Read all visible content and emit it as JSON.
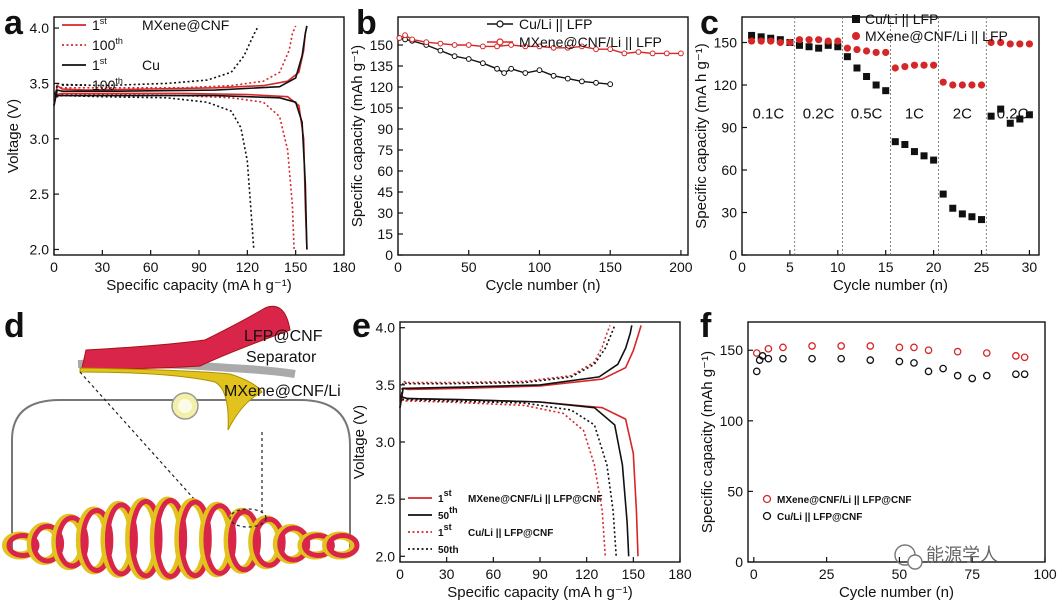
{
  "colors": {
    "red": "#d62728",
    "black": "#111111",
    "gold": "#e7c623",
    "watermark": "#6b6b6b"
  },
  "panel_letters": [
    "a",
    "b",
    "c",
    "d",
    "e",
    "f"
  ],
  "watermark": {
    "icon": "wechat-icon",
    "text": "能源学人"
  },
  "illustration": {
    "labels": [
      "LFP@CNF",
      "Separator",
      "MXene@CNF/Li"
    ]
  },
  "chart_data": [
    {
      "id": "a",
      "type": "line",
      "xlabel": "Specific capacity (mA h g⁻¹)",
      "ylabel": "Voltage (V)",
      "xlim": [
        0,
        180
      ],
      "ylim": [
        1.95,
        4.1
      ],
      "xticks": [
        0,
        30,
        60,
        90,
        120,
        150,
        180
      ],
      "yticks": [
        2.0,
        2.5,
        3.0,
        3.5,
        4.0
      ],
      "ytick_labels": [
        "2.0",
        "2.5",
        "3.0",
        "3.5",
        "4.0"
      ],
      "legend": {
        "position": "top-left",
        "entries": [
          {
            "cycle": "1",
            "sup": "st",
            "style": "solid",
            "color": "red",
            "group_label": "MXene@CNF"
          },
          {
            "cycle": "100",
            "sup": "th",
            "style": "dotted",
            "color": "red",
            "group_label": ""
          },
          {
            "cycle": "1",
            "sup": "st",
            "style": "solid",
            "color": "black",
            "group_label": "Cu"
          },
          {
            "cycle": "100",
            "sup": "th",
            "style": "dotted",
            "color": "black",
            "group_label": ""
          }
        ]
      },
      "series": [
        {
          "color": "red",
          "dash": "solid",
          "x": [
            0,
            2,
            5,
            20,
            60,
            100,
            130,
            145,
            152,
            155,
            156,
            157
          ],
          "y": [
            3.3,
            3.48,
            3.45,
            3.44,
            3.45,
            3.46,
            3.48,
            3.52,
            3.6,
            3.8,
            3.95,
            4.02
          ]
        },
        {
          "color": "red",
          "dash": "solid",
          "x": [
            0,
            2,
            5,
            30,
            80,
            120,
            145,
            152,
            155,
            156,
            157
          ],
          "y": [
            3.42,
            3.4,
            3.41,
            3.41,
            3.41,
            3.4,
            3.38,
            3.3,
            3.0,
            2.4,
            2.0
          ]
        },
        {
          "color": "red",
          "dash": "dotted",
          "x": [
            0,
            2,
            5,
            30,
            80,
            110,
            130,
            140,
            146,
            148,
            150
          ],
          "y": [
            3.3,
            3.47,
            3.46,
            3.46,
            3.46,
            3.48,
            3.52,
            3.6,
            3.8,
            3.95,
            4.02
          ]
        },
        {
          "color": "red",
          "dash": "dotted",
          "x": [
            0,
            2,
            5,
            30,
            80,
            110,
            130,
            140,
            145,
            148,
            149
          ],
          "y": [
            3.42,
            3.39,
            3.4,
            3.4,
            3.39,
            3.37,
            3.33,
            3.2,
            2.9,
            2.4,
            2.0
          ]
        },
        {
          "color": "black",
          "dash": "solid",
          "x": [
            0,
            2,
            5,
            40,
            100,
            140,
            150,
            154,
            156,
            157
          ],
          "y": [
            3.3,
            3.44,
            3.43,
            3.43,
            3.44,
            3.47,
            3.55,
            3.75,
            3.95,
            4.02
          ]
        },
        {
          "color": "black",
          "dash": "solid",
          "x": [
            0,
            2,
            5,
            40,
            100,
            140,
            150,
            154,
            156,
            157
          ],
          "y": [
            3.42,
            3.39,
            3.39,
            3.39,
            3.39,
            3.37,
            3.33,
            3.15,
            2.6,
            2.0
          ]
        },
        {
          "color": "black",
          "dash": "dotted",
          "x": [
            0,
            2,
            5,
            30,
            70,
            95,
            110,
            118,
            122,
            125,
            127
          ],
          "y": [
            3.3,
            3.5,
            3.49,
            3.48,
            3.5,
            3.53,
            3.6,
            3.75,
            3.88,
            3.97,
            4.02
          ]
        },
        {
          "color": "black",
          "dash": "dotted",
          "x": [
            0,
            2,
            5,
            30,
            70,
            95,
            110,
            116,
            120,
            122,
            124
          ],
          "y": [
            3.42,
            3.38,
            3.39,
            3.38,
            3.37,
            3.33,
            3.25,
            3.1,
            2.8,
            2.4,
            2.0
          ]
        }
      ]
    },
    {
      "id": "b",
      "type": "line",
      "xlabel": "Cycle number (n)",
      "ylabel": "Specific capacity (mAh g⁻¹)",
      "xlim": [
        0,
        205
      ],
      "ylim": [
        0,
        170
      ],
      "xticks": [
        0,
        50,
        100,
        150,
        200
      ],
      "yticks": [
        0,
        15,
        30,
        45,
        60,
        75,
        90,
        105,
        120,
        135,
        150
      ],
      "legend": {
        "position": "top-right"
      },
      "series": [
        {
          "name": "Cu/Li || LFP",
          "color": "black",
          "marker": "circle",
          "x": [
            1,
            5,
            10,
            20,
            30,
            40,
            50,
            60,
            70,
            75,
            80,
            90,
            100,
            110,
            120,
            130,
            140,
            150
          ],
          "y": [
            155,
            154,
            153,
            150,
            146,
            142,
            140,
            137,
            133,
            130,
            133,
            130,
            132,
            128,
            126,
            124,
            123,
            122
          ]
        },
        {
          "name": "MXene@CNF/Li || LFP",
          "color": "red",
          "marker": "circle",
          "x": [
            1,
            5,
            10,
            20,
            30,
            40,
            50,
            60,
            70,
            80,
            90,
            100,
            110,
            120,
            130,
            140,
            150,
            160,
            170,
            180,
            190,
            200
          ],
          "y": [
            155,
            157,
            154,
            152,
            151,
            150,
            150,
            149,
            149,
            150,
            149,
            149,
            148,
            148,
            149,
            147,
            147,
            144,
            145,
            144,
            144,
            144
          ]
        }
      ]
    },
    {
      "id": "c",
      "type": "scatter",
      "xlabel": "Cycle number (n)",
      "ylabel": "Specific capacity (mA h g⁻¹)",
      "xlim": [
        0,
        31
      ],
      "ylim": [
        0,
        168
      ],
      "xticks": [
        0,
        5,
        10,
        15,
        20,
        25,
        30
      ],
      "yticks": [
        0,
        30,
        60,
        90,
        120,
        150
      ],
      "rate_labels": [
        "0.1C",
        "0.2C",
        "0.5C",
        "1C",
        "2C",
        "0.2C"
      ],
      "rate_dividers": [
        5.5,
        10.5,
        15.5,
        20.5,
        25.5
      ],
      "legend": {
        "position": "top"
      },
      "series": [
        {
          "name": "Cu/Li || LFP",
          "color": "black",
          "marker": "square",
          "x": [
            1,
            2,
            3,
            4,
            5,
            6,
            7,
            8,
            9,
            10,
            11,
            12,
            13,
            14,
            15,
            16,
            17,
            18,
            19,
            20,
            21,
            22,
            23,
            24,
            25,
            26,
            27,
            28,
            29,
            30
          ],
          "y": [
            155,
            154,
            153,
            152,
            150,
            148,
            147,
            146,
            148,
            147,
            140,
            132,
            126,
            120,
            116,
            80,
            78,
            73,
            70,
            67,
            43,
            33,
            29,
            27,
            25,
            98,
            103,
            93,
            96,
            99
          ]
        },
        {
          "name": "MXene@CNF/Li || LFP",
          "color": "red",
          "marker": "circle",
          "x": [
            1,
            2,
            3,
            4,
            5,
            6,
            7,
            8,
            9,
            10,
            11,
            12,
            13,
            14,
            15,
            16,
            17,
            18,
            19,
            20,
            21,
            22,
            23,
            24,
            25,
            26,
            27,
            28,
            29,
            30
          ],
          "y": [
            151,
            151,
            151,
            150,
            150,
            152,
            152,
            152,
            151,
            151,
            146,
            145,
            144,
            143,
            143,
            132,
            133,
            134,
            134,
            134,
            122,
            120,
            120,
            120,
            120,
            150,
            150,
            149,
            149,
            149
          ]
        }
      ]
    },
    {
      "id": "e",
      "type": "line",
      "xlabel": "Specific capacity (mA h g⁻¹)",
      "ylabel": "Voltage (V)",
      "xlim": [
        0,
        180
      ],
      "ylim": [
        1.95,
        4.05
      ],
      "xticks": [
        0,
        30,
        60,
        90,
        120,
        150,
        180
      ],
      "yticks": [
        2.0,
        2.5,
        3.0,
        3.5,
        4.0
      ],
      "ytick_labels": [
        "2.0",
        "2.5",
        "3.0",
        "3.5",
        "4.0"
      ],
      "legend": {
        "position": "bottom-left",
        "entries": [
          {
            "cycle": "1",
            "sup": "st",
            "style": "solid",
            "color": "red",
            "group_label": "MXene@CNF/Li || LFP@CNF"
          },
          {
            "cycle": "50",
            "sup": "th",
            "style": "solid",
            "color": "black",
            "group_label": ""
          },
          {
            "cycle": "1",
            "sup": "st",
            "style": "dotted",
            "color": "red",
            "group_label": "Cu/Li || LFP@CNF"
          },
          {
            "cycle": "50th",
            "sup": "",
            "style": "dotted",
            "color": "black",
            "group_label": ""
          }
        ]
      },
      "series": [
        {
          "color": "red",
          "dash": "solid",
          "x": [
            0,
            2,
            5,
            40,
            90,
            130,
            145,
            150,
            153,
            155
          ],
          "y": [
            3.3,
            3.47,
            3.46,
            3.47,
            3.49,
            3.55,
            3.65,
            3.8,
            3.93,
            4.02
          ]
        },
        {
          "color": "red",
          "dash": "solid",
          "x": [
            0,
            2,
            5,
            40,
            90,
            130,
            145,
            150,
            152,
            153
          ],
          "y": [
            3.41,
            3.39,
            3.38,
            3.37,
            3.35,
            3.3,
            3.2,
            2.9,
            2.4,
            2.0
          ]
        },
        {
          "color": "black",
          "dash": "solid",
          "x": [
            0,
            2,
            5,
            40,
            90,
            128,
            140,
            145,
            148,
            149
          ],
          "y": [
            3.3,
            3.47,
            3.47,
            3.48,
            3.5,
            3.57,
            3.68,
            3.82,
            3.95,
            4.02
          ]
        },
        {
          "color": "black",
          "dash": "solid",
          "x": [
            0,
            2,
            5,
            40,
            90,
            125,
            138,
            143,
            146,
            147
          ],
          "y": [
            3.41,
            3.39,
            3.38,
            3.37,
            3.35,
            3.3,
            3.15,
            2.8,
            2.3,
            2.0
          ]
        },
        {
          "color": "red",
          "dash": "dotted",
          "x": [
            0,
            2,
            5,
            30,
            80,
            110,
            125,
            130,
            133,
            135
          ],
          "y": [
            3.3,
            3.53,
            3.52,
            3.52,
            3.53,
            3.58,
            3.7,
            3.83,
            3.95,
            4.02
          ]
        },
        {
          "color": "red",
          "dash": "dotted",
          "x": [
            0,
            2,
            5,
            30,
            80,
            105,
            118,
            125,
            130,
            132
          ],
          "y": [
            3.41,
            3.36,
            3.36,
            3.35,
            3.32,
            3.25,
            3.1,
            2.8,
            2.4,
            2.0
          ]
        },
        {
          "color": "black",
          "dash": "dotted",
          "x": [
            0,
            2,
            5,
            30,
            80,
            110,
            125,
            132,
            136,
            138
          ],
          "y": [
            3.3,
            3.52,
            3.51,
            3.51,
            3.52,
            3.57,
            3.68,
            3.82,
            3.95,
            4.02
          ]
        },
        {
          "color": "black",
          "dash": "dotted",
          "x": [
            0,
            2,
            5,
            30,
            80,
            110,
            125,
            133,
            137,
            139
          ],
          "y": [
            3.41,
            3.37,
            3.37,
            3.36,
            3.34,
            3.28,
            3.15,
            2.8,
            2.4,
            2.0
          ]
        }
      ]
    },
    {
      "id": "f",
      "type": "scatter",
      "xlabel": "Cycle number (n)",
      "ylabel": "Specific capacity (mAh g⁻¹)",
      "xlim": [
        -2,
        100
      ],
      "ylim": [
        0,
        170
      ],
      "xticks": [
        0,
        25,
        50,
        75,
        100
      ],
      "yticks": [
        0,
        50,
        100,
        150
      ],
      "legend": {
        "position": "bottom-left"
      },
      "series": [
        {
          "name": "MXene@CNF/Li || LFP@CNF",
          "color": "red",
          "marker": "circle-open",
          "x": [
            1,
            5,
            10,
            20,
            30,
            40,
            50,
            55,
            60,
            70,
            80,
            90,
            93
          ],
          "y": [
            148,
            151,
            152,
            153,
            153,
            153,
            152,
            152,
            150,
            149,
            148,
            146,
            145
          ]
        },
        {
          "name": "Cu/Li || LFP@CNF",
          "color": "black",
          "marker": "circle-open",
          "x": [
            1,
            2,
            3,
            5,
            10,
            20,
            30,
            40,
            50,
            55,
            60,
            65,
            70,
            75,
            80,
            90,
            93
          ],
          "y": [
            135,
            143,
            146,
            144,
            144,
            144,
            144,
            143,
            142,
            141,
            135,
            137,
            132,
            130,
            132,
            133,
            133
          ]
        }
      ]
    }
  ]
}
